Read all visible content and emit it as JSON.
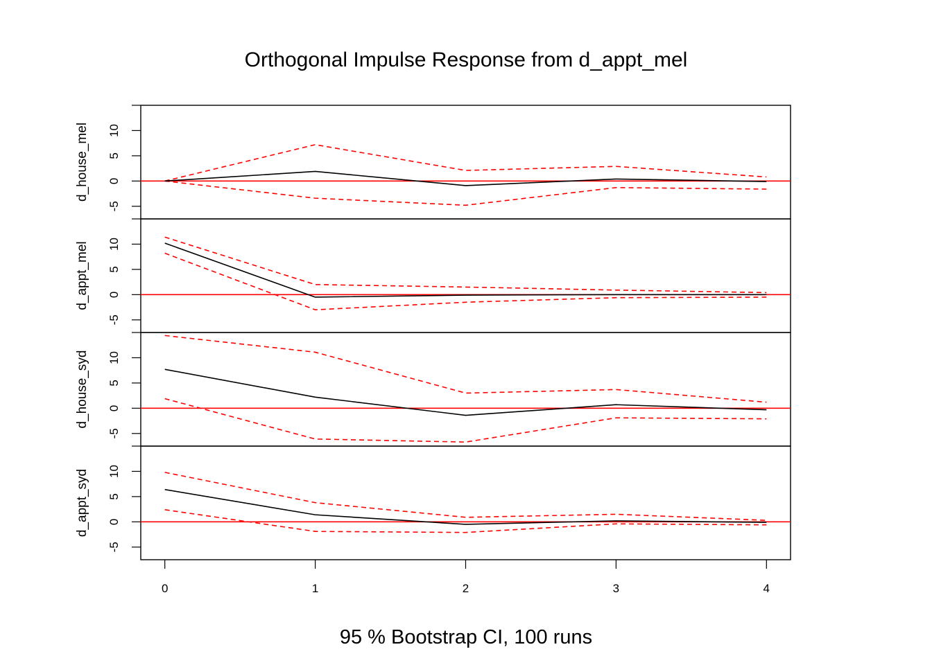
{
  "chart_data": {
    "type": "line",
    "title": "Orthogonal Impulse Response from d_appt_mel",
    "xlabel": "95 % Bootstrap CI,  100 runs",
    "x": [
      0,
      1,
      2,
      3,
      4
    ],
    "xticks": [
      "0",
      "1",
      "2",
      "3",
      "4"
    ],
    "xlim": [
      -0.16,
      4.16
    ],
    "ylim": [
      -7.5,
      15
    ],
    "yticks": [
      -5,
      0,
      5,
      10
    ],
    "colors": {
      "response": "#000000",
      "ci": "#ff0000",
      "zero_line": "#ff0000"
    },
    "panels": [
      {
        "ylabel": "d_house_mel",
        "response": [
          0,
          1.9,
          -0.9,
          0.4,
          -0.1
        ],
        "upper": [
          0,
          7.2,
          2.1,
          2.9,
          0.8
        ],
        "lower": [
          0,
          -3.4,
          -4.8,
          -1.3,
          -1.6
        ]
      },
      {
        "ylabel": "d_appt_mel",
        "response": [
          10.2,
          -0.5,
          -0.1,
          0.0,
          0.0
        ],
        "upper": [
          11.4,
          2.0,
          1.5,
          0.9,
          0.4
        ],
        "lower": [
          8.2,
          -3.0,
          -1.5,
          -0.6,
          -0.5
        ]
      },
      {
        "ylabel": "d_house_syd",
        "response": [
          7.7,
          2.2,
          -1.4,
          0.7,
          -0.3
        ],
        "upper": [
          14.4,
          11.1,
          3.0,
          3.7,
          1.2
        ],
        "lower": [
          1.9,
          -6.1,
          -6.7,
          -1.9,
          -2.1
        ]
      },
      {
        "ylabel": "d_appt_syd",
        "response": [
          6.4,
          1.4,
          -0.5,
          0.2,
          -0.1
        ],
        "upper": [
          9.8,
          3.8,
          0.9,
          1.5,
          0.3
        ],
        "lower": [
          2.4,
          -1.9,
          -2.1,
          -0.4,
          -0.6
        ]
      }
    ]
  }
}
